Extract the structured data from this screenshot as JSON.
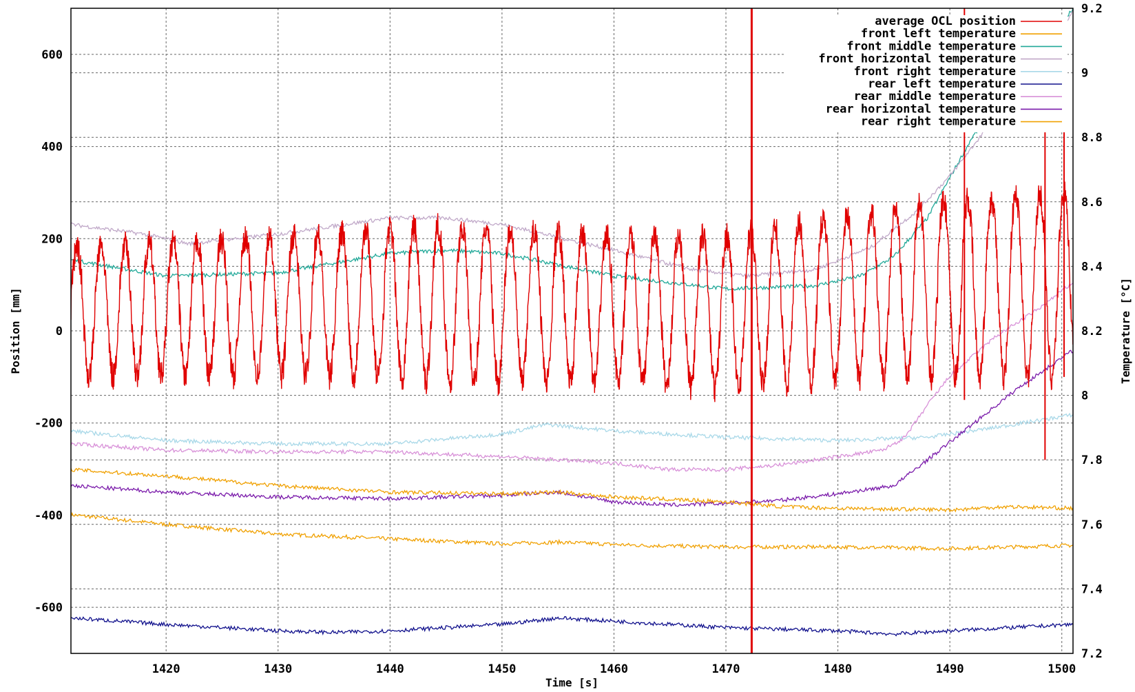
{
  "chart_data": {
    "type": "line",
    "xlabel": "Time [s]",
    "ylabel": "Position [mm]",
    "y2label": "Temperature [°C]",
    "xlim": [
      1411.5,
      1501
    ],
    "ylim": [
      -700,
      700
    ],
    "y2lim": [
      7.2,
      9.2
    ],
    "xticks": [
      "1420",
      "1430",
      "1440",
      "1450",
      "1460",
      "1470",
      "1480",
      "1490",
      "1500"
    ],
    "yticks": [
      "-600",
      "-400",
      "-200",
      "0",
      "200",
      "400",
      "600"
    ],
    "y2ticks": [
      "7.2",
      "7.4",
      "7.6",
      "7.8",
      "8",
      "8.2",
      "8.4",
      "8.6",
      "8.8",
      "9",
      "9.2"
    ],
    "grid": true,
    "legend_position": "top-right",
    "series": [
      {
        "name": "average OCL position",
        "axis": "left",
        "color": "#e00000",
        "kind": "oscillation",
        "period": 2.15,
        "center": [
          [
            1411.5,
            40
          ],
          [
            1440,
            60
          ],
          [
            1455,
            50
          ],
          [
            1470,
            40
          ],
          [
            1480,
            70
          ],
          [
            1490,
            90
          ],
          [
            1501,
            100
          ]
        ],
        "amplitude": [
          [
            1411.5,
            140
          ],
          [
            1430,
            150
          ],
          [
            1445,
            170
          ],
          [
            1460,
            160
          ],
          [
            1475,
            170
          ],
          [
            1490,
            190
          ],
          [
            1501,
            200
          ]
        ],
        "spikes": [
          [
            1472.3,
            -700,
            700
          ],
          [
            1491.3,
            -150,
            700
          ],
          [
            1498.5,
            -280,
            450
          ],
          [
            1500.2,
            -100,
            570
          ]
        ]
      },
      {
        "name": "front left temperature",
        "axis": "right",
        "color": "#f0a000",
        "points": [
          [
            1411.5,
            7.63
          ],
          [
            1420,
            7.6
          ],
          [
            1430,
            7.57
          ],
          [
            1440,
            7.555
          ],
          [
            1450,
            7.54
          ],
          [
            1455,
            7.545
          ],
          [
            1462,
            7.535
          ],
          [
            1470,
            7.53
          ],
          [
            1480,
            7.53
          ],
          [
            1490,
            7.525
          ],
          [
            1501,
            7.535
          ]
        ]
      },
      {
        "name": "front middle temperature",
        "axis": "right",
        "color": "#20a898",
        "points": [
          [
            1411.5,
            8.42
          ],
          [
            1420,
            8.37
          ],
          [
            1430,
            8.38
          ],
          [
            1440,
            8.44
          ],
          [
            1445,
            8.45
          ],
          [
            1450,
            8.44
          ],
          [
            1460,
            8.37
          ],
          [
            1470,
            8.33
          ],
          [
            1478,
            8.34
          ],
          [
            1482,
            8.37
          ],
          [
            1485,
            8.43
          ],
          [
            1488,
            8.55
          ],
          [
            1492,
            8.8
          ],
          [
            1496,
            8.98
          ],
          [
            1501,
            9.2
          ]
        ]
      },
      {
        "name": "front horizontal temperature",
        "axis": "right",
        "color": "#c0a8c8",
        "points": [
          [
            1411.5,
            8.53
          ],
          [
            1418,
            8.5
          ],
          [
            1422,
            8.47
          ],
          [
            1430,
            8.5
          ],
          [
            1440,
            8.55
          ],
          [
            1445,
            8.55
          ],
          [
            1450,
            8.53
          ],
          [
            1460,
            8.45
          ],
          [
            1467,
            8.39
          ],
          [
            1472,
            8.37
          ],
          [
            1478,
            8.39
          ],
          [
            1483,
            8.46
          ],
          [
            1487,
            8.57
          ],
          [
            1490,
            8.68
          ],
          [
            1494,
            8.86
          ],
          [
            1498,
            9.05
          ],
          [
            1501,
            9.19
          ]
        ]
      },
      {
        "name": "front right temperature",
        "axis": "right",
        "color": "#a8d8e8",
        "points": [
          [
            1411.5,
            7.89
          ],
          [
            1420,
            7.86
          ],
          [
            1430,
            7.85
          ],
          [
            1440,
            7.85
          ],
          [
            1450,
            7.88
          ],
          [
            1454,
            7.91
          ],
          [
            1460,
            7.89
          ],
          [
            1470,
            7.87
          ],
          [
            1480,
            7.86
          ],
          [
            1488,
            7.87
          ],
          [
            1494,
            7.9
          ],
          [
            1501,
            7.94
          ]
        ]
      },
      {
        "name": "rear left temperature",
        "axis": "right",
        "color": "#10108c",
        "points": [
          [
            1411.5,
            7.31
          ],
          [
            1420,
            7.29
          ],
          [
            1430,
            7.27
          ],
          [
            1435,
            7.265
          ],
          [
            1440,
            7.27
          ],
          [
            1450,
            7.29
          ],
          [
            1455,
            7.31
          ],
          [
            1460,
            7.3
          ],
          [
            1470,
            7.28
          ],
          [
            1480,
            7.27
          ],
          [
            1485,
            7.26
          ],
          [
            1490,
            7.27
          ],
          [
            1501,
            7.29
          ]
        ]
      },
      {
        "name": "rear middle temperature",
        "axis": "right",
        "color": "#d890d8",
        "points": [
          [
            1411.5,
            7.85
          ],
          [
            1420,
            7.83
          ],
          [
            1430,
            7.825
          ],
          [
            1440,
            7.825
          ],
          [
            1450,
            7.81
          ],
          [
            1460,
            7.79
          ],
          [
            1465,
            7.77
          ],
          [
            1470,
            7.77
          ],
          [
            1475,
            7.785
          ],
          [
            1480,
            7.81
          ],
          [
            1484,
            7.83
          ],
          [
            1486,
            7.87
          ],
          [
            1488,
            7.97
          ],
          [
            1490,
            8.06
          ],
          [
            1494,
            8.18
          ],
          [
            1498,
            8.27
          ],
          [
            1501,
            8.35
          ]
        ]
      },
      {
        "name": "rear horizontal temperature",
        "axis": "right",
        "color": "#7a1aaa",
        "points": [
          [
            1411.5,
            7.72
          ],
          [
            1420,
            7.7
          ],
          [
            1430,
            7.685
          ],
          [
            1440,
            7.68
          ],
          [
            1450,
            7.69
          ],
          [
            1455,
            7.7
          ],
          [
            1460,
            7.67
          ],
          [
            1465,
            7.66
          ],
          [
            1470,
            7.665
          ],
          [
            1475,
            7.675
          ],
          [
            1480,
            7.695
          ],
          [
            1485,
            7.72
          ],
          [
            1488,
            7.8
          ],
          [
            1492,
            7.91
          ],
          [
            1496,
            8.02
          ],
          [
            1501,
            8.14
          ]
        ]
      },
      {
        "name": "rear right temperature",
        "axis": "right",
        "color": "#f0a000",
        "points": [
          [
            1411.5,
            7.77
          ],
          [
            1420,
            7.75
          ],
          [
            1430,
            7.72
          ],
          [
            1440,
            7.7
          ],
          [
            1450,
            7.695
          ],
          [
            1455,
            7.7
          ],
          [
            1460,
            7.685
          ],
          [
            1470,
            7.67
          ],
          [
            1475,
            7.655
          ],
          [
            1480,
            7.65
          ],
          [
            1490,
            7.645
          ],
          [
            1495,
            7.655
          ],
          [
            1501,
            7.65
          ]
        ]
      }
    ]
  }
}
